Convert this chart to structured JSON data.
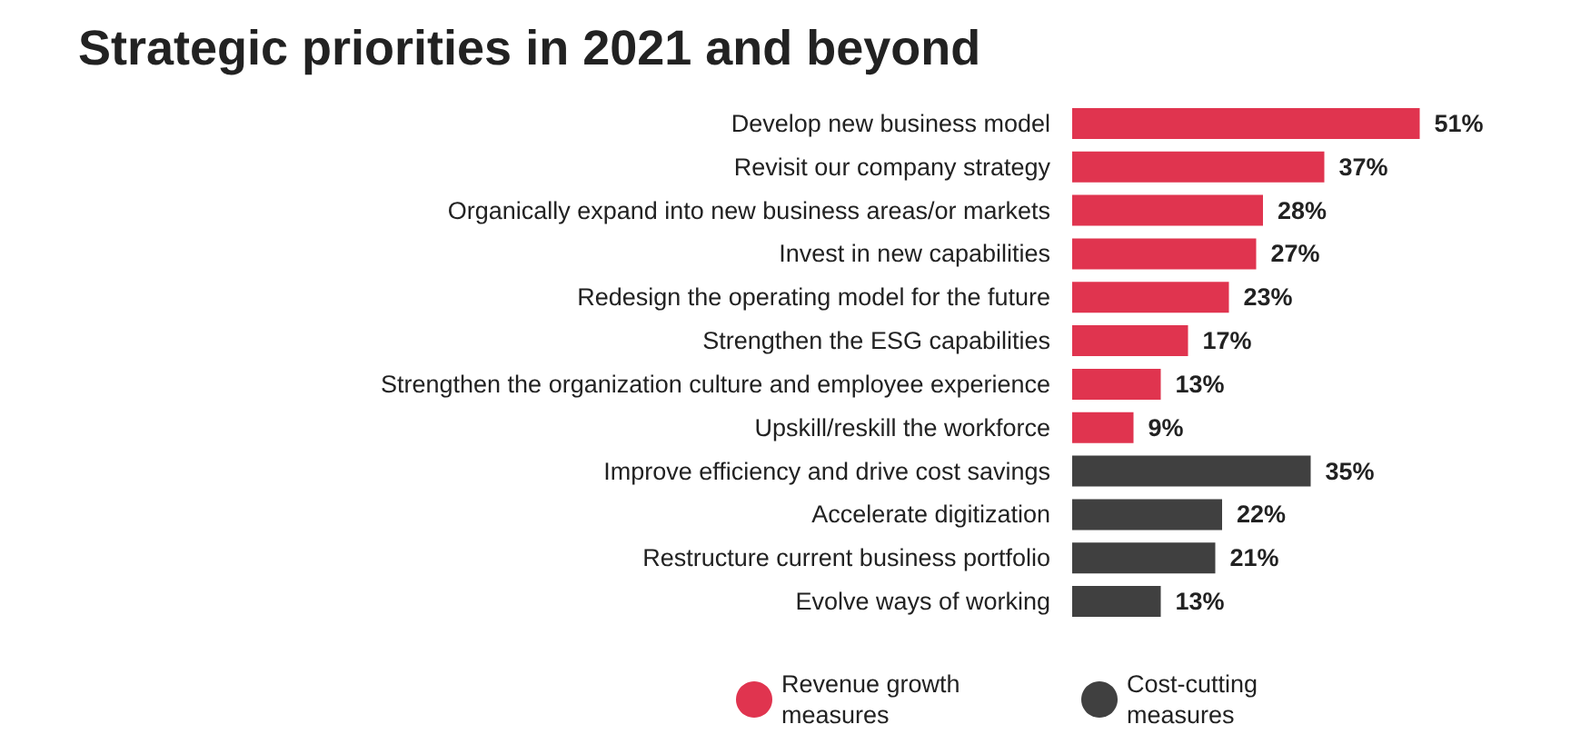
{
  "chart_data": {
    "type": "bar",
    "orientation": "horizontal",
    "title": "Strategic priorities in 2021 and beyond",
    "categories": [
      "Develop new business model",
      "Revisit our company strategy",
      "Organically expand into new business areas/or markets",
      "Invest in new capabilities",
      "Redesign the operating model for the future",
      "Strengthen the ESG capabilities",
      "Strengthen the organization culture and employee experience",
      "Upskill/reskill the workforce",
      "Improve efficiency and drive cost savings",
      "Accelerate digitization",
      "Restructure current business portfolio",
      "Evolve ways of working"
    ],
    "series": [
      {
        "name": "Revenue growth measures",
        "color": "#e0344f",
        "values": [
          51,
          37,
          28,
          27,
          23,
          17,
          13,
          9,
          null,
          null,
          null,
          null
        ],
        "value_labels": [
          "51%",
          "37%",
          "28%",
          "27%",
          "23%",
          "17%",
          "13%",
          "9%",
          null,
          null,
          null,
          null
        ]
      },
      {
        "name": "Cost-cutting measures",
        "color": "#404040",
        "values": [
          null,
          null,
          null,
          null,
          null,
          null,
          null,
          null,
          35,
          22,
          21,
          13
        ],
        "value_labels": [
          null,
          null,
          null,
          null,
          null,
          null,
          null,
          null,
          "35%",
          "22%",
          "21%",
          "13%"
        ]
      }
    ],
    "legend": "bottom"
  }
}
